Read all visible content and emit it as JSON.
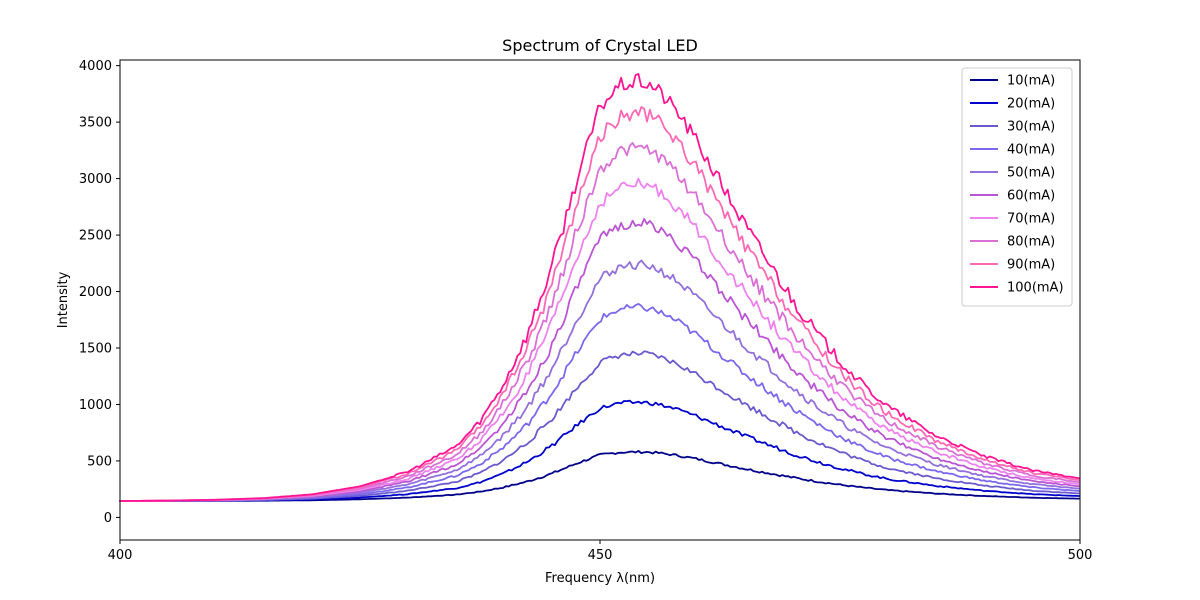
{
  "chart_data": {
    "type": "line",
    "title": "Spectrum of Crystal LED",
    "xlabel": "Frequency λ(nm)",
    "ylabel": "Intensity",
    "xlim": [
      400,
      500
    ],
    "ylim": [
      -200,
      4050
    ],
    "x_ticks": [
      400,
      450,
      500
    ],
    "y_ticks": [
      0,
      500,
      1000,
      1500,
      2000,
      2500,
      3000,
      3500,
      4000
    ],
    "grid": false,
    "legend_position": "top-right",
    "baseline": 145,
    "x": [
      400,
      405,
      410,
      415,
      420,
      425,
      430,
      435,
      437.5,
      440,
      442.5,
      445,
      447.5,
      450,
      452,
      454,
      455,
      456,
      458,
      460,
      462.5,
      465,
      467.5,
      470,
      472.5,
      475,
      477.5,
      480,
      485,
      490,
      495,
      500
    ],
    "series": [
      {
        "name": "10(mA)",
        "color": "#00008b",
        "peak": 580,
        "tail": 150
      },
      {
        "name": "20(mA)",
        "color": "#0000cd",
        "peak": 1020,
        "tail": 160
      },
      {
        "name": "30(mA)",
        "color": "#6a5acd",
        "peak": 1450,
        "tail": 172
      },
      {
        "name": "40(mA)",
        "color": "#7b68ee",
        "peak": 1860,
        "tail": 183
      },
      {
        "name": "50(mA)",
        "color": "#9370db",
        "peak": 2240,
        "tail": 195
      },
      {
        "name": "60(mA)",
        "color": "#ba55d3",
        "peak": 2610,
        "tail": 207
      },
      {
        "name": "70(mA)",
        "color": "#ee82ee",
        "peak": 2950,
        "tail": 220
      },
      {
        "name": "80(mA)",
        "color": "#da70d6",
        "peak": 3270,
        "tail": 232
      },
      {
        "name": "90(mA)",
        "color": "#ff69b4",
        "peak": 3580,
        "tail": 244
      },
      {
        "name": "100(mA)",
        "color": "#ff1493",
        "peak": 3860,
        "tail": 258
      }
    ],
    "shape": [
      0.0,
      0.001,
      0.003,
      0.007,
      0.016,
      0.035,
      0.07,
      0.13,
      0.19,
      0.28,
      0.4,
      0.56,
      0.76,
      0.94,
      0.99,
      1.0,
      0.995,
      0.98,
      0.93,
      0.86,
      0.76,
      0.66,
      0.57,
      0.48,
      0.4,
      0.33,
      0.27,
      0.22,
      0.15,
      0.1,
      0.065,
      0.045
    ]
  }
}
